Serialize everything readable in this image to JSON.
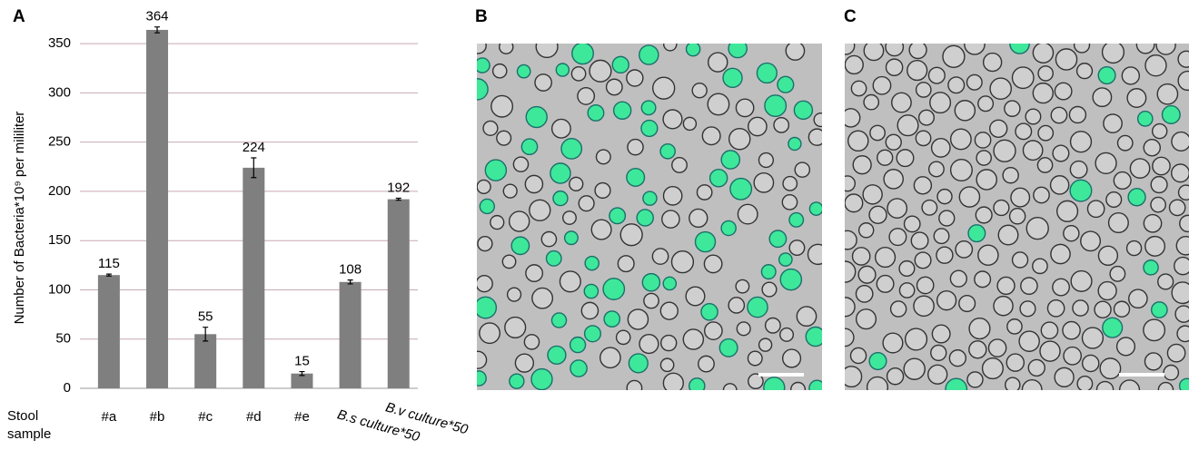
{
  "chart_data": {
    "type": "bar",
    "panel_labels": [
      "A",
      "B",
      "C"
    ],
    "ylabel": "Number of Bacteria*10⁹ per mililiter",
    "xlabel": "Stool\nsample",
    "categories": [
      "#a",
      "#b",
      "#c",
      "#d",
      "#e",
      "B.s culture*50",
      "B.v culture*50"
    ],
    "values": [
      115,
      364,
      55,
      224,
      15,
      108,
      192
    ],
    "errors": [
      1,
      3,
      7,
      10,
      2,
      2,
      1
    ],
    "color": "#7f7f7f",
    "grid_color": "#c8a9b4",
    "ylim": [
      0,
      375
    ],
    "yticks": [
      0,
      50,
      100,
      150,
      200,
      250,
      300,
      350
    ],
    "grid": true
  }
}
